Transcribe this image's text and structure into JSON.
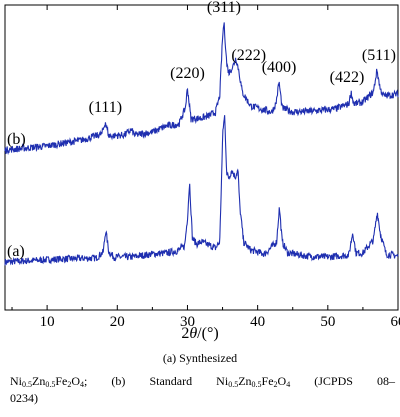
{
  "chart_data": {
    "type": "line",
    "xlabel": "2θ/(°)",
    "xlabel_parts": {
      "pre": "2",
      "var": "θ",
      "post": "/(°)"
    },
    "xlim": [
      4,
      60
    ],
    "xticks": [
      10,
      20,
      30,
      40,
      50,
      60
    ],
    "xtick_labels": [
      "10",
      "20",
      "30",
      "40",
      "50",
      "60"
    ],
    "y_axis_visible": false,
    "grid": false,
    "series": [
      {
        "name": "(a)",
        "baseline_y": 262,
        "points": [
          [
            4,
            0
          ],
          [
            12,
            3
          ],
          [
            17,
            4
          ],
          [
            18,
            10
          ],
          [
            18.35,
            32
          ],
          [
            18.8,
            10
          ],
          [
            19.5,
            5
          ],
          [
            22,
            5
          ],
          [
            25,
            8
          ],
          [
            27,
            9
          ],
          [
            28.5,
            11
          ],
          [
            29.6,
            16
          ],
          [
            30.0,
            44
          ],
          [
            30.3,
            80
          ],
          [
            30.7,
            24
          ],
          [
            31.3,
            18
          ],
          [
            32,
            20
          ],
          [
            33,
            17
          ],
          [
            34,
            14
          ],
          [
            34.6,
            20
          ],
          [
            35.05,
            132
          ],
          [
            35.3,
            146
          ],
          [
            35.6,
            88
          ],
          [
            35.9,
            84
          ],
          [
            36.3,
            92
          ],
          [
            36.8,
            85
          ],
          [
            37.2,
            92
          ],
          [
            37.45,
            56
          ],
          [
            38,
            20
          ],
          [
            39,
            12
          ],
          [
            41,
            8
          ],
          [
            42.7,
            20
          ],
          [
            43.1,
            55
          ],
          [
            43.5,
            20
          ],
          [
            44.3,
            9
          ],
          [
            47,
            6
          ],
          [
            50,
            5
          ],
          [
            53,
            7
          ],
          [
            53.55,
            30
          ],
          [
            54,
            9
          ],
          [
            55,
            9
          ],
          [
            56.5,
            22
          ],
          [
            57.05,
            50
          ],
          [
            57.5,
            28
          ],
          [
            58.3,
            8
          ],
          [
            60,
            6
          ]
        ]
      },
      {
        "name": "(b)",
        "baseline_y": 150,
        "points": [
          [
            4,
            0
          ],
          [
            10,
            4
          ],
          [
            15,
            10
          ],
          [
            17.8,
            16
          ],
          [
            18.3,
            28
          ],
          [
            18.8,
            14
          ],
          [
            21,
            15
          ],
          [
            22,
            20
          ],
          [
            22.5,
            15
          ],
          [
            25,
            18
          ],
          [
            27,
            24
          ],
          [
            28.8,
            26
          ],
          [
            29.7,
            42
          ],
          [
            30.0,
            62
          ],
          [
            30.5,
            31
          ],
          [
            32,
            32
          ],
          [
            33,
            34
          ],
          [
            34,
            38
          ],
          [
            34.6,
            54
          ],
          [
            35.0,
            112
          ],
          [
            35.2,
            128
          ],
          [
            35.6,
            86
          ],
          [
            35.9,
            77
          ],
          [
            36.5,
            84
          ],
          [
            36.9,
            92
          ],
          [
            37.3,
            80
          ],
          [
            37.8,
            58
          ],
          [
            39,
            44
          ],
          [
            42,
            38
          ],
          [
            42.6,
            46
          ],
          [
            43.05,
            68
          ],
          [
            43.5,
            42
          ],
          [
            45,
            38
          ],
          [
            48,
            39
          ],
          [
            51,
            41
          ],
          [
            53,
            46
          ],
          [
            53.3,
            58
          ],
          [
            53.7,
            46
          ],
          [
            55,
            48
          ],
          [
            56.5,
            58
          ],
          [
            57.0,
            80
          ],
          [
            57.5,
            60
          ],
          [
            58,
            54
          ],
          [
            60,
            56
          ]
        ]
      }
    ],
    "annotations": [
      {
        "text": "(111)",
        "x": 18.3,
        "series": "(b)"
      },
      {
        "text": "(220)",
        "x": 30.0,
        "series": "(b)"
      },
      {
        "text": "(311)",
        "x": 35.2,
        "series": "(b)"
      },
      {
        "text": "(222)",
        "x": 37.3,
        "series": "(b)"
      },
      {
        "text": "(400)",
        "x": 43.05,
        "series": "(b)"
      },
      {
        "text": "(422)",
        "x": 53.3,
        "series": "(b)"
      },
      {
        "text": "(511)",
        "x": 57.0,
        "series": "(b)"
      }
    ],
    "line_color": "#1f2fb0"
  },
  "caption": {
    "line1": "(a)   Synthesized",
    "line2_parts": [
      "Ni",
      "0.5",
      "Zn",
      "0.5",
      "Fe",
      "2",
      "O",
      "4",
      ";   (b)   Standard   Ni",
      "0.5",
      "Zn",
      "0.5",
      "Fe",
      "2",
      "O",
      "4",
      "   (JCPDS   08–"
    ],
    "line3": "0234)"
  }
}
